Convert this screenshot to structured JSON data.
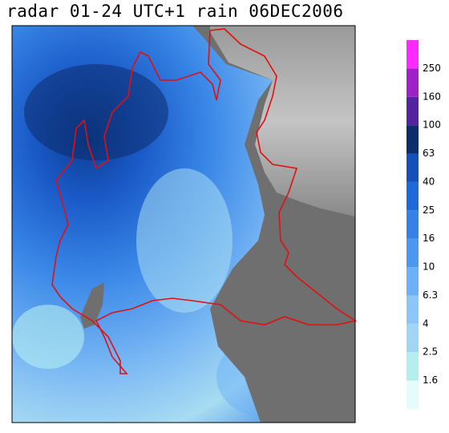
{
  "title": "radar 01-24 UTC+1 rain 06DEC2006",
  "legend": {
    "labels": [
      "1.6",
      "2.5",
      "4",
      "6.3",
      "10",
      "16",
      "25",
      "40",
      "63",
      "100",
      "160",
      "250"
    ],
    "colors": [
      "#e4fcfc",
      "#b6eef0",
      "#a0d6f4",
      "#8cc6f8",
      "#6cb0f8",
      "#4c98f0",
      "#3282e8",
      "#1e68d8",
      "#1450b8",
      "#0c2c6c",
      "#5424a0",
      "#a020c8",
      "#ff28ff"
    ]
  }
}
